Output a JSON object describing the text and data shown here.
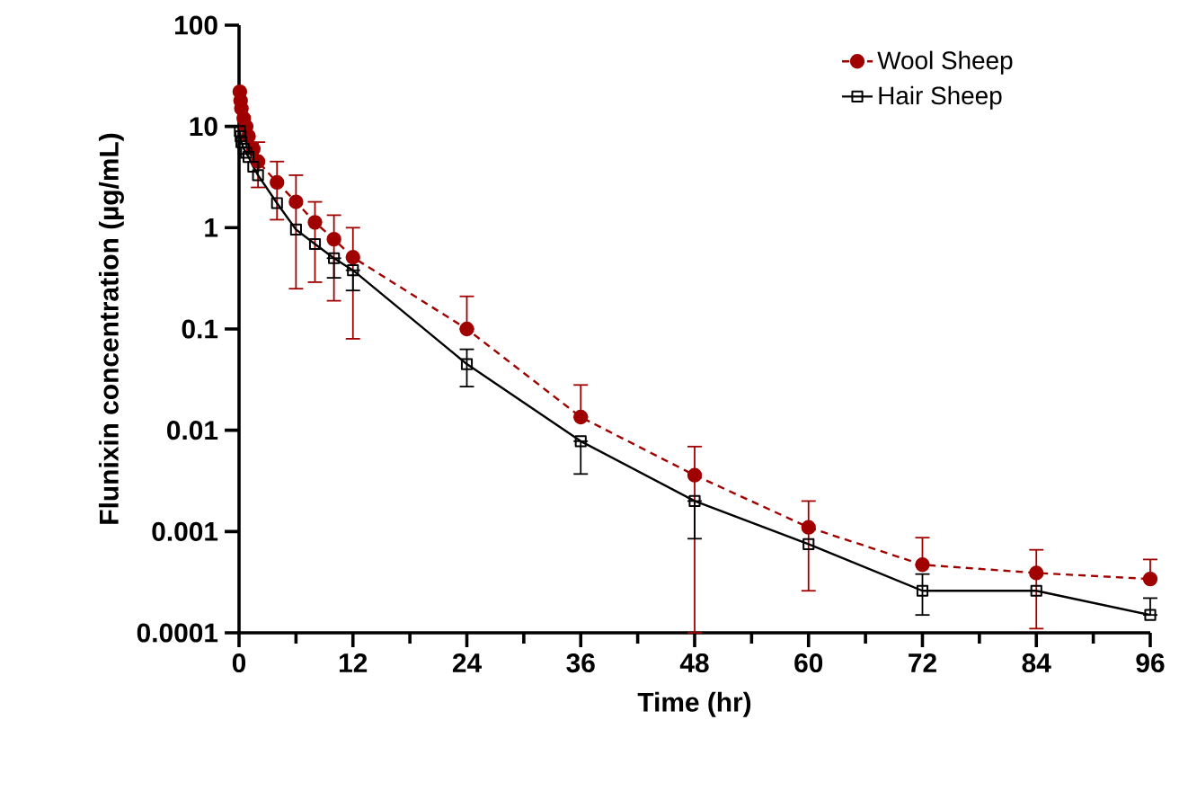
{
  "chart_data": {
    "type": "line",
    "xlabel": "Time (hr)",
    "ylabel": "Flunixin concentration (µg/mL)",
    "log": "y",
    "legend": "top right",
    "grid": false,
    "xlim": [
      0,
      96
    ],
    "xticks": [
      0,
      12,
      24,
      36,
      48,
      60,
      72,
      84,
      96
    ],
    "ylim": [
      0.0001,
      100
    ],
    "yticks": [
      {
        "value": 0.0001,
        "label": "0.0001"
      },
      {
        "value": 0.001,
        "label": "0.001"
      },
      {
        "value": 0.01,
        "label": "0.01"
      },
      {
        "value": 0.1,
        "label": "0.1"
      },
      {
        "value": 1,
        "label": "1"
      },
      {
        "value": 10,
        "label": "10"
      },
      {
        "value": 100,
        "label": "100"
      }
    ],
    "series": [
      {
        "name": "Wool Sheep",
        "color": "#a00000",
        "marker": "circle",
        "line_style": "dashed",
        "x": [
          0.083,
          0.167,
          0.25,
          0.5,
          0.75,
          1,
          1.5,
          2,
          4,
          6,
          8,
          10,
          12,
          24,
          36,
          48,
          60,
          72,
          84,
          96
        ],
        "values": [
          22,
          18,
          15,
          12,
          10,
          8,
          6,
          4.5,
          2.8,
          1.8,
          1.13,
          0.77,
          0.51,
          0.1,
          0.0135,
          0.0036,
          0.0011,
          0.00047,
          0.00039,
          0.00034
        ],
        "errors": [
          null,
          null,
          null,
          null,
          null,
          null,
          null,
          [
            2.5,
            7
          ],
          [
            1.2,
            4.5
          ],
          [
            0.25,
            3.3
          ],
          [
            0.29,
            1.8
          ],
          [
            0.19,
            1.33
          ],
          [
            0.08,
            1.0
          ],
          [
            0.1,
            0.21
          ],
          [
            0.0135,
            0.028
          ],
          [
            0.0001,
            0.0069
          ],
          [
            0.00026,
            0.002
          ],
          [
            0.00047,
            0.00087
          ],
          [
            0.00011,
            0.00066
          ],
          [
            0.00034,
            0.00053
          ]
        ]
      },
      {
        "name": "Hair Sheep",
        "color": "#000000",
        "marker": "square",
        "line_style": "solid",
        "x": [
          0.083,
          0.167,
          0.25,
          0.5,
          0.75,
          1,
          1.5,
          2,
          4,
          6,
          8,
          10,
          12,
          24,
          36,
          48,
          60,
          72,
          84,
          96
        ],
        "values": [
          9,
          8,
          7,
          6,
          5.5,
          5,
          4,
          3.3,
          1.75,
          0.96,
          0.69,
          0.5,
          0.38,
          0.045,
          0.0078,
          0.002,
          0.00075,
          0.00026,
          0.00026,
          0.00015
        ],
        "errors": [
          null,
          null,
          null,
          null,
          null,
          null,
          null,
          null,
          null,
          null,
          null,
          [
            0.32,
            0.5
          ],
          [
            0.24,
            0.38
          ],
          [
            0.027,
            0.063
          ],
          [
            0.0037,
            0.0078
          ],
          [
            0.00085,
            0.002
          ],
          null,
          [
            0.00015,
            0.00038
          ],
          null,
          [
            0.00015,
            0.00022
          ]
        ]
      }
    ]
  }
}
